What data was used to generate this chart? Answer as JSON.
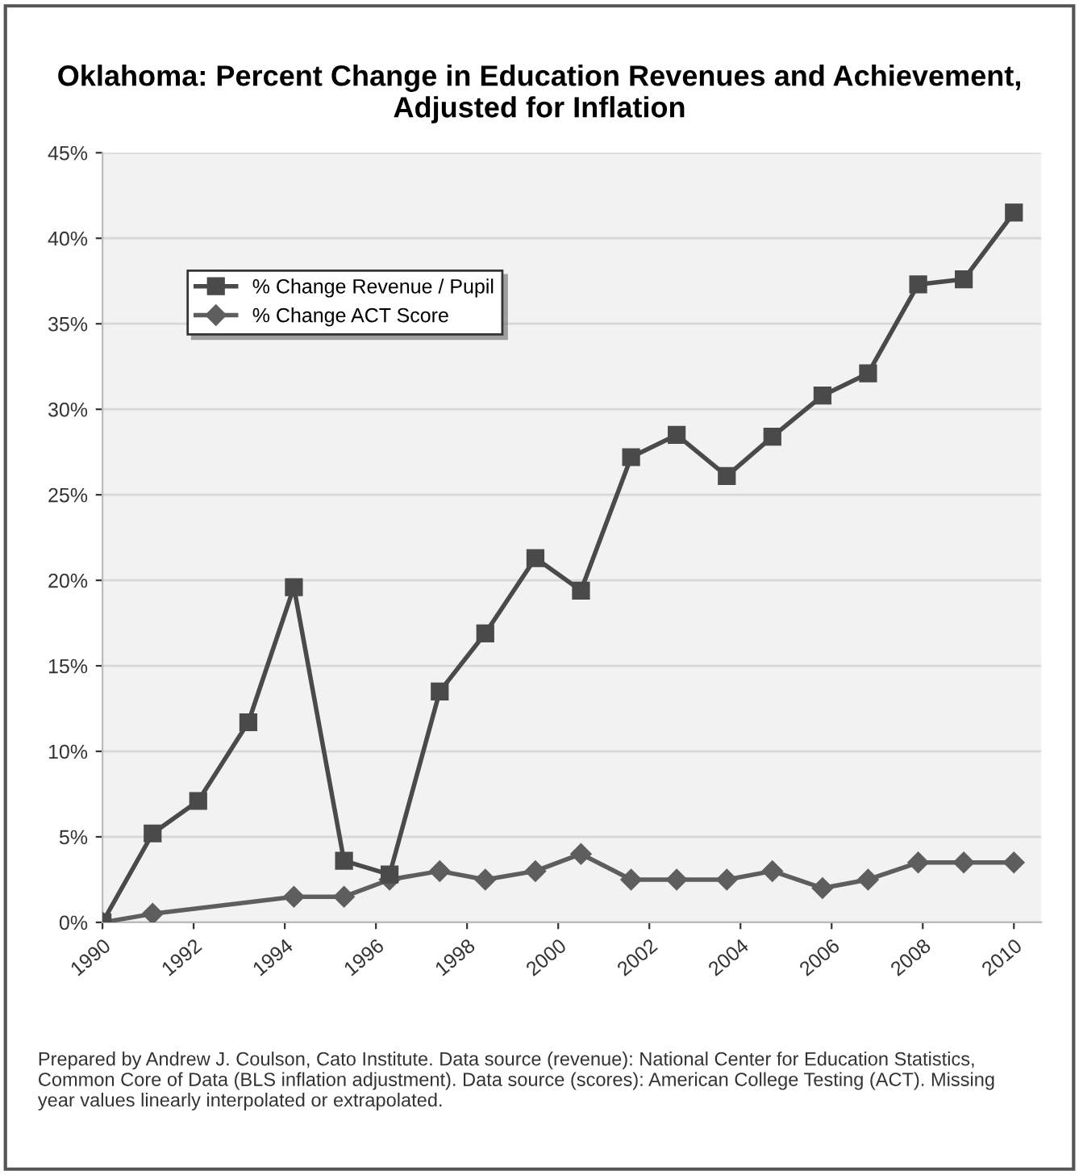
{
  "chart_data": {
    "type": "line",
    "title": "Oklahoma: Percent Change in Education Revenues and Achievement, Adjusted for Inflation",
    "x": [
      1990,
      1991.1,
      1992.1,
      1993.2,
      1994.2,
      1995.3,
      1996.3,
      1997.4,
      1998.4,
      1999.5,
      2000.5,
      2001.6,
      2002.6,
      2003.7,
      2004.7,
      2005.8,
      2006.8,
      2007.9,
      2008.9,
      2010
    ],
    "series": [
      {
        "name": "% Change Revenue / Pupil",
        "color": "#4a4a4a",
        "marker": "square",
        "values": [
          0,
          5.2,
          7.1,
          11.7,
          19.6,
          3.6,
          2.8,
          13.5,
          16.9,
          21.3,
          19.4,
          27.2,
          28.5,
          26.1,
          28.4,
          30.8,
          32.1,
          37.3,
          37.6,
          41.5
        ]
      },
      {
        "name": "% Change ACT Score",
        "color": "#5e5e5e",
        "marker": "diamond",
        "x": [
          1990,
          1991.1,
          1994.2,
          1995.3,
          1996.3,
          1997.4,
          1998.4,
          1999.5,
          2000.5,
          2001.6,
          2002.6,
          2003.7,
          2004.7,
          2005.8,
          2006.8,
          2007.9,
          2008.9,
          2010
        ],
        "values": [
          0,
          0.5,
          1.5,
          1.5,
          2.5,
          3.0,
          2.5,
          3.0,
          4.0,
          2.5,
          2.5,
          2.5,
          3.0,
          2.0,
          2.5,
          3.5,
          3.5,
          3.5
        ]
      }
    ],
    "xlim": [
      1990,
      2010.6
    ],
    "xticks": [
      1990,
      1992,
      1994,
      1996,
      1998,
      2000,
      2002,
      2004,
      2006,
      2008,
      2010
    ],
    "ylim": [
      0,
      45
    ],
    "yticks": [
      {
        "value": 0,
        "label": "0%"
      },
      {
        "value": 5,
        "label": "5%"
      },
      {
        "value": 10,
        "label": "10%"
      },
      {
        "value": 15,
        "label": "15%"
      },
      {
        "value": 20,
        "label": "20%"
      },
      {
        "value": 25,
        "label": "25%"
      },
      {
        "value": 30,
        "label": "30%"
      },
      {
        "value": 35,
        "label": "35%"
      },
      {
        "value": 40,
        "label": "40%"
      },
      {
        "value": 45,
        "label": "45%"
      }
    ],
    "grid": "y",
    "legend": "top left",
    "line_style": "solid",
    "annotations": [
      "Prepared by Andrew J. Coulson, Cato Institute. Data source (revenue): National Center for Education Statistics, Common Core of Data (BLS inflation adjustment). Data source (scores): American College Testing (ACT). Missing year values linearly interpolated or extrapolated."
    ]
  }
}
